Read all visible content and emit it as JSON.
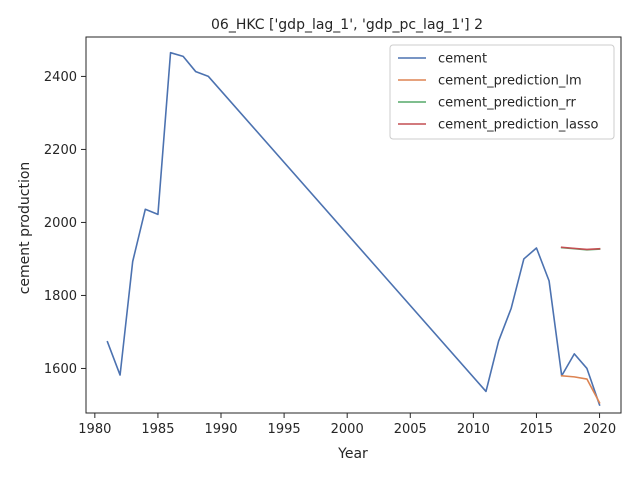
{
  "chart_data": {
    "type": "line",
    "title": "06_HKC ['gdp_lag_1', 'gdp_pc_lag_1'] 2",
    "xlabel": "Year",
    "ylabel": "cement production",
    "xlim": [
      1979.3,
      2021.7
    ],
    "ylim": [
      1478,
      2508
    ],
    "xticks": [
      1980,
      1985,
      1990,
      1995,
      2000,
      2005,
      2010,
      2015,
      2020
    ],
    "yticks": [
      1600,
      1800,
      2000,
      2200,
      2400
    ],
    "grid": false,
    "legend_position": "top-right",
    "series": [
      {
        "name": "cement",
        "color": "#4c72b0",
        "x": [
          1981,
          1982,
          1983,
          1984,
          1985,
          1986,
          1987,
          1988,
          1989,
          2011,
          2012,
          2013,
          2014,
          2015,
          2016,
          2017,
          2018,
          2019,
          2020
        ],
        "y": [
          1673,
          1582,
          1893,
          2036,
          2022,
          2465,
          2455,
          2413,
          2400,
          1537,
          1675,
          1765,
          1900,
          1930,
          1840,
          1580,
          1640,
          1600,
          1500
        ]
      },
      {
        "name": "cement_prediction_lm",
        "color": "#dd8452",
        "x": [
          2017,
          2018,
          2019,
          2020
        ],
        "y": [
          1580,
          1577,
          1571,
          1506
        ]
      },
      {
        "name": "cement_prediction_rr",
        "color": "#55a868",
        "x": [
          2017,
          2018,
          2019,
          2020
        ],
        "y": [
          1931,
          1928,
          1925,
          1927
        ]
      },
      {
        "name": "cement_prediction_lasso",
        "color": "#c44e52",
        "x": [
          2017,
          2018,
          2019,
          2020
        ],
        "y": [
          1932,
          1929,
          1926,
          1928
        ]
      }
    ]
  }
}
